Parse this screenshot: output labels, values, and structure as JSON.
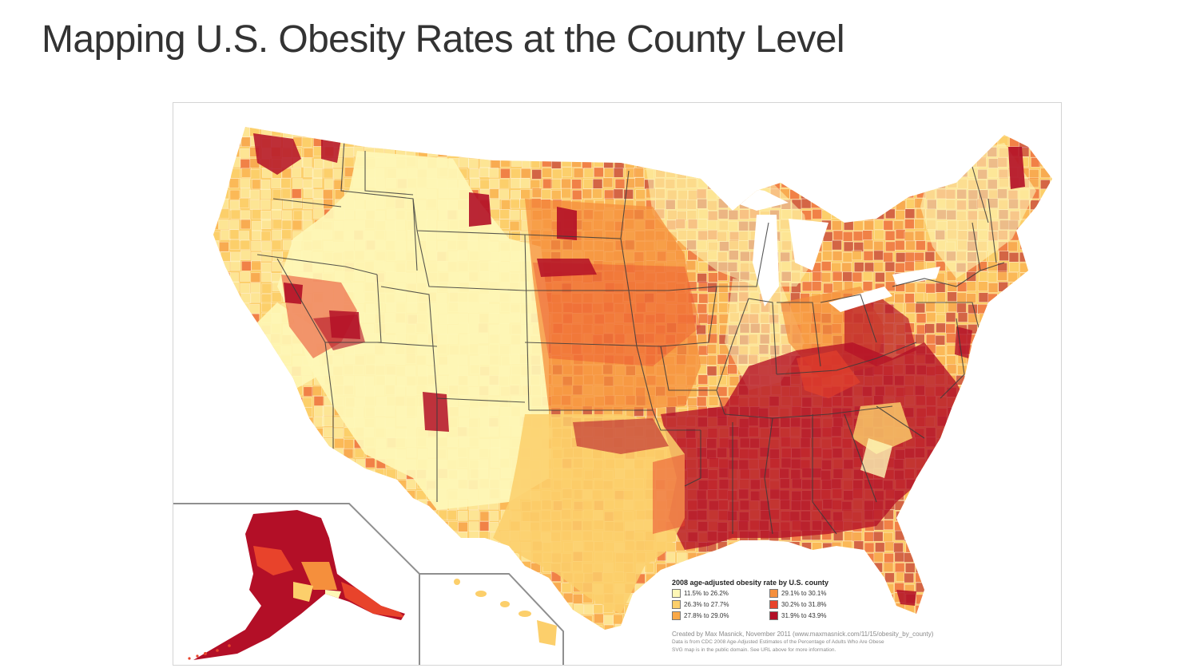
{
  "page": {
    "title": "Mapping U.S. Obesity Rates at the County Level"
  },
  "map": {
    "legend": {
      "title": "2008 age-adjusted obesity rate by U.S. county",
      "items": [
        {
          "label": "11.5% to 26.2%",
          "color": "#fef7b7"
        },
        {
          "label": "29.1% to 30.1%",
          "color": "#f58f3c"
        },
        {
          "label": "26.3% to 27.7%",
          "color": "#fccf6b"
        },
        {
          "label": "30.2% to 31.8%",
          "color": "#e8432b"
        },
        {
          "label": "27.8% to 29.0%",
          "color": "#f9a847"
        },
        {
          "label": "31.9% to 43.9%",
          "color": "#b30f27"
        }
      ]
    },
    "credits": {
      "line1": "Created by Max Masnick, November 2011 (www.maxmasnick.com/11/15/obesity_by_county)",
      "line2": "Data is from CDC 2008 Age-Adjusted Estimates of the Percentage of Adults Who Are Obese",
      "line3": "SVG map is in the public domain. See URL above for more information."
    },
    "colors": {
      "class1": "#fef7b7",
      "class2": "#fccf6b",
      "class3": "#f9a847",
      "class4": "#f58f3c",
      "class5": "#e8432b",
      "class6": "#b30f27",
      "borders": "#3b3b3b",
      "inset_lines": "#8f8f8f"
    }
  }
}
